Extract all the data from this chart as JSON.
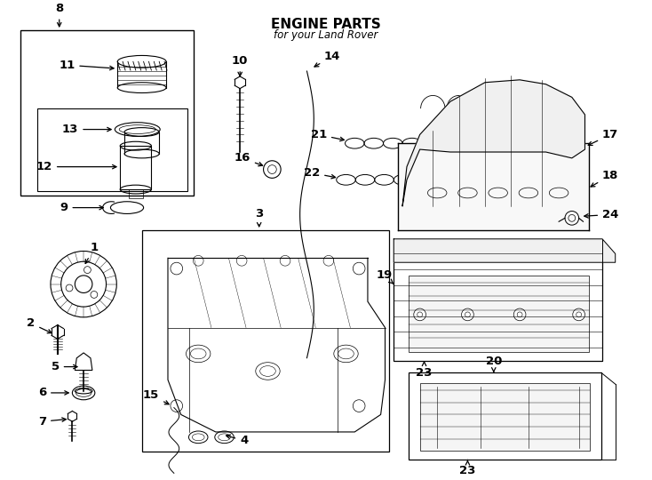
{
  "title": "ENGINE PARTS",
  "subtitle": "for your Land Rover",
  "bg_color": "#ffffff",
  "line_color": "#000000",
  "fig_width": 7.34,
  "fig_height": 5.4,
  "dpi": 100,
  "label_fontsize": 9.5,
  "bold_fontsize": 11
}
